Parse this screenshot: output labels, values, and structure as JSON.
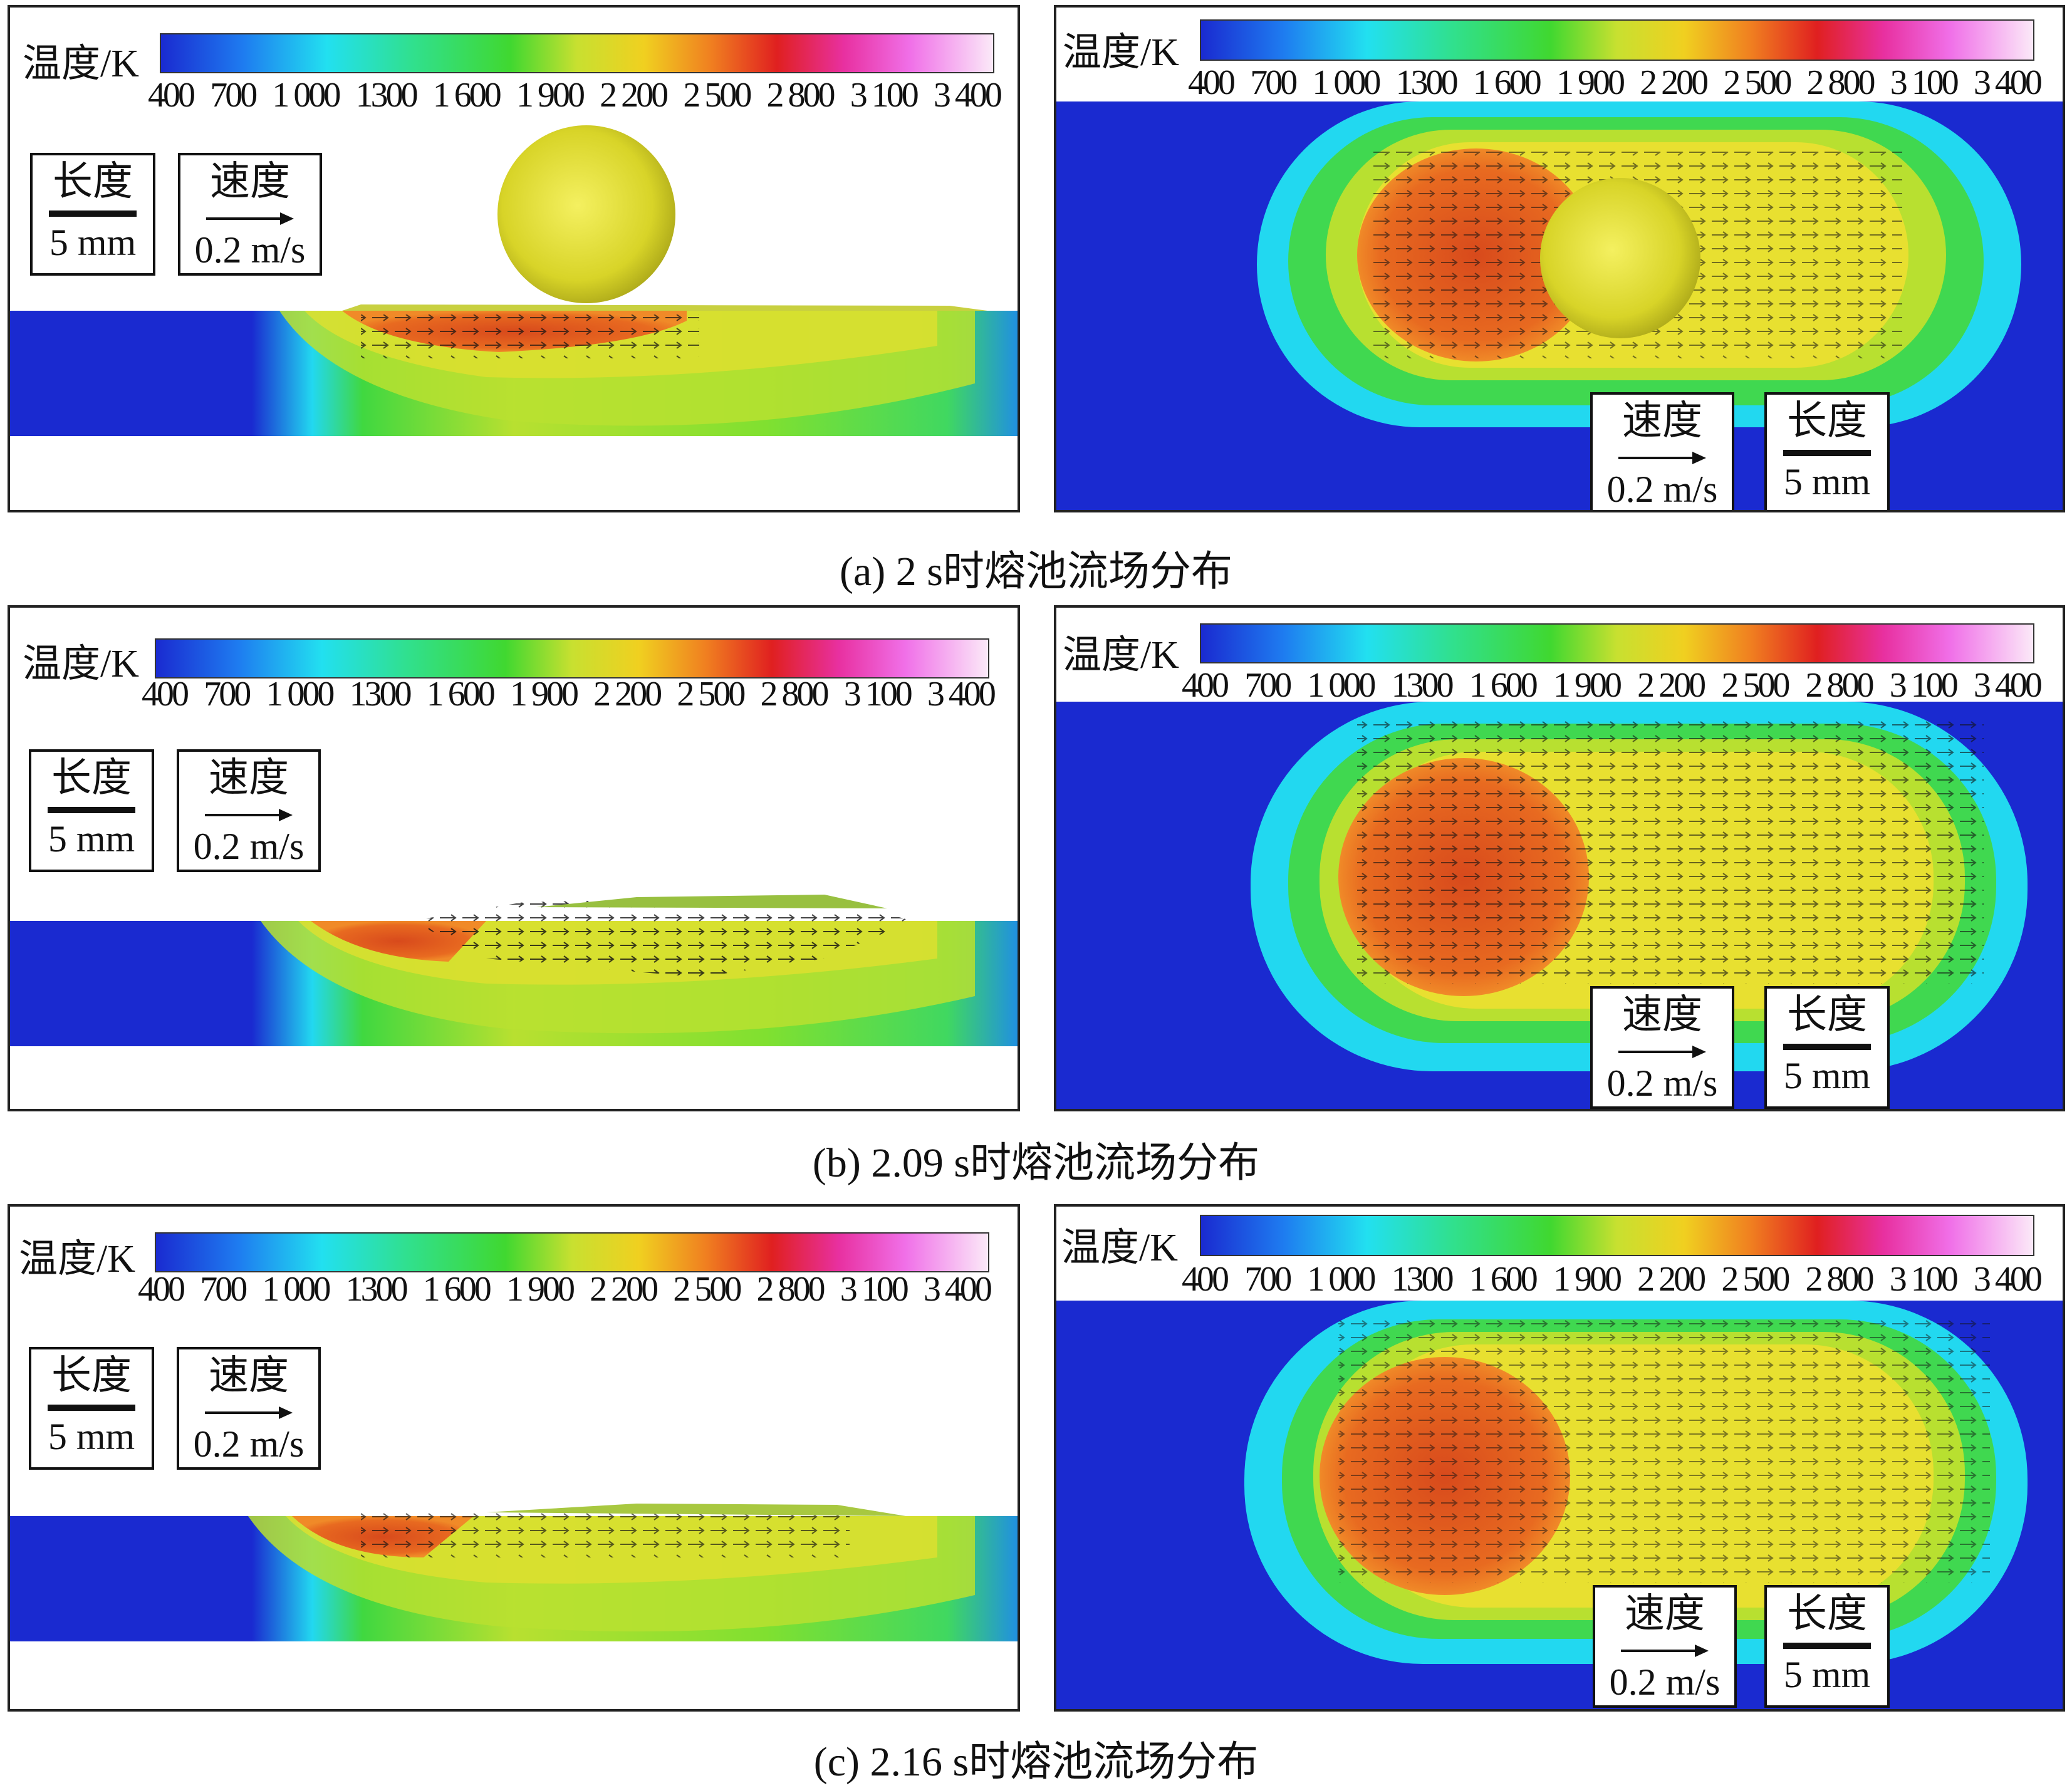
{
  "colorbar": {
    "label": "温度/K",
    "ticks": [
      "400",
      "700",
      "1 000",
      "1300",
      "1 600",
      "1 900",
      "2 200",
      "2 500",
      "2 800",
      "3 100",
      "3 400"
    ]
  },
  "legend": {
    "length_label": "长度",
    "length_value": "5 mm",
    "speed_label": "速度",
    "speed_value": "0.2 m/s"
  },
  "captions": {
    "a": "(a) 2 s时熔池流场分布",
    "b": "(b) 2.09 s时熔池流场分布",
    "c": "(c) 2.16 s时熔池流场分布"
  },
  "colors": {
    "substrate_cold": "#1e2bd6",
    "cyan": "#22d6f0",
    "green": "#3ad23a",
    "yellow": "#e8e830",
    "orange": "#f08a1c",
    "red": "#d83018",
    "magenta": "#e040e0",
    "arrows": "#111111"
  }
}
